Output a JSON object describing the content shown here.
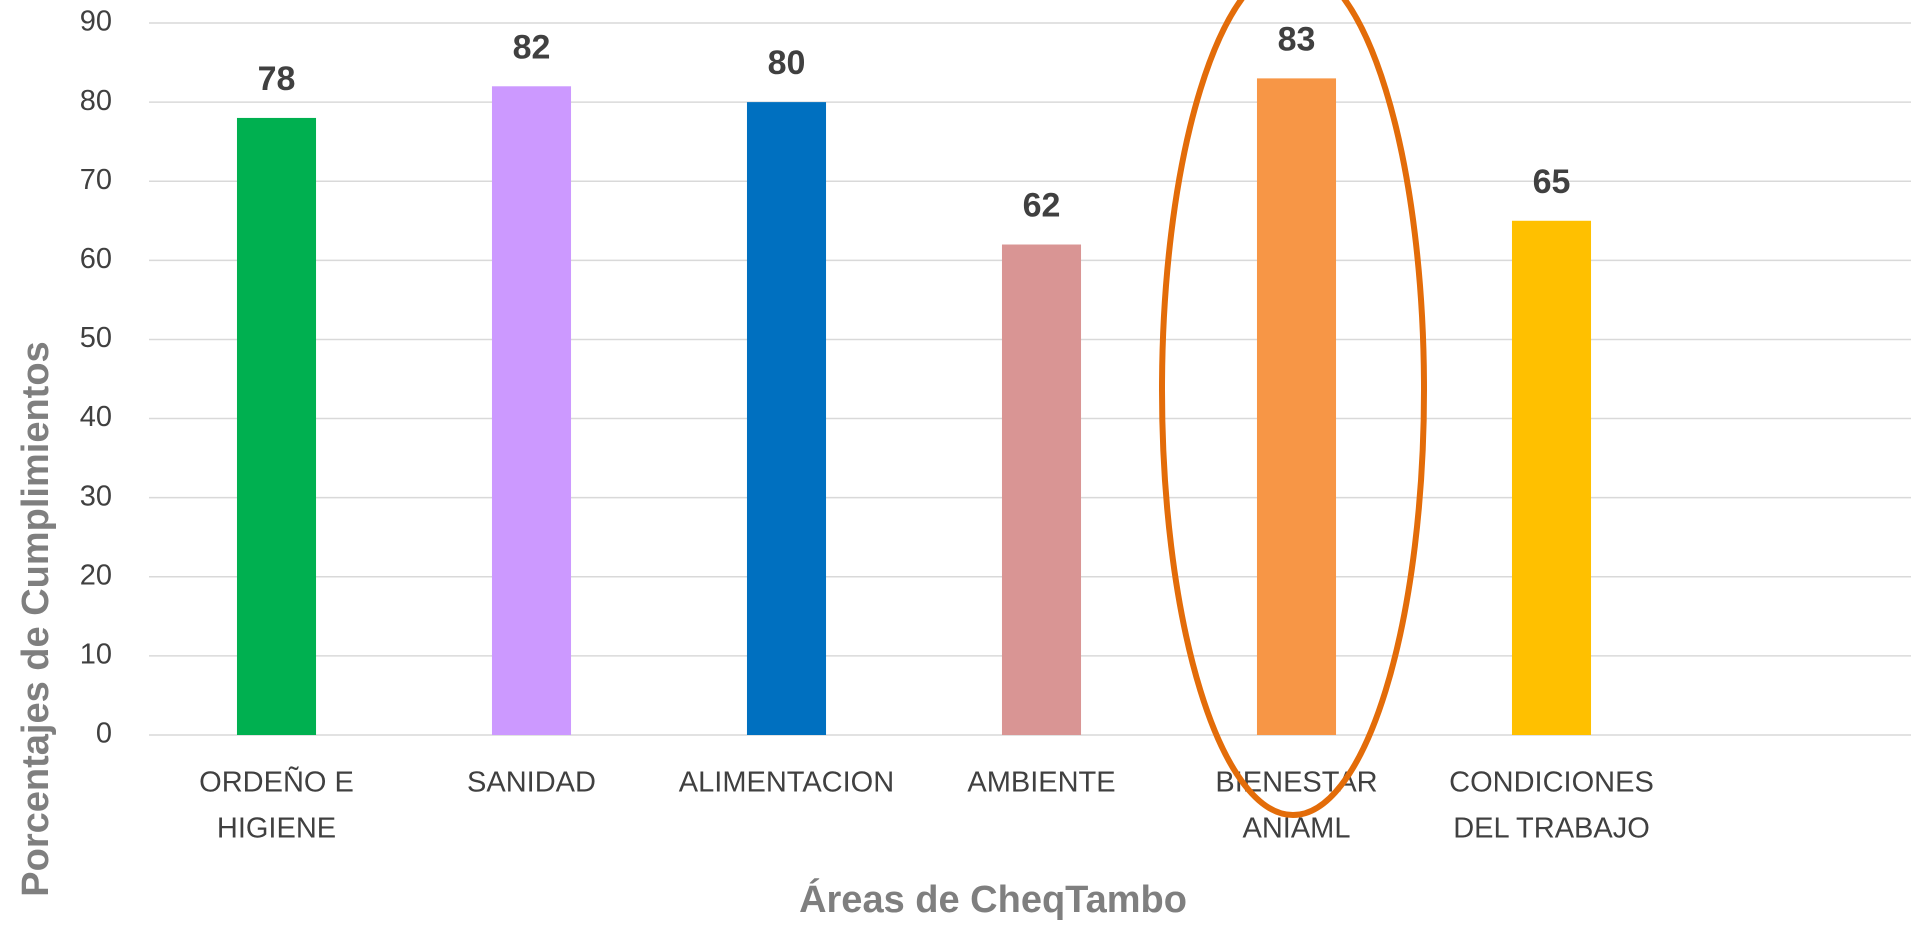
{
  "chart_data": {
    "type": "bar",
    "categories": [
      [
        "ORDEÑO E",
        "HIGIENE"
      ],
      [
        "SANIDAD"
      ],
      [
        "ALIMENTACION"
      ],
      [
        "AMBIENTE"
      ],
      [
        "BIENESTAR",
        "ANIAML"
      ],
      [
        "CONDICIONES",
        "DEL TRABAJO"
      ]
    ],
    "values": [
      78,
      82,
      80,
      62,
      83,
      65
    ],
    "colors": [
      "#00b050",
      "#cc99ff",
      "#0070c0",
      "#d99594",
      "#f79646",
      "#ffc000"
    ],
    "xlabel": "Áreas de CheqTambo",
    "ylabel": "Porcentajes de Cumplimientos",
    "ylim": [
      0,
      90
    ],
    "yticks": [
      0,
      10,
      20,
      30,
      40,
      50,
      60,
      70,
      80,
      90
    ],
    "grid": true
  }
}
